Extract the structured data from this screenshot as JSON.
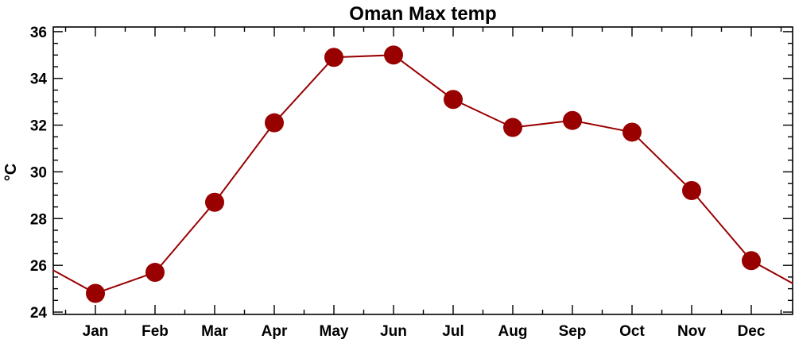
{
  "chart_data": {
    "type": "line",
    "title": "Oman Max temp",
    "xlabel": "",
    "ylabel": "°C",
    "categories": [
      "Jan",
      "Feb",
      "Mar",
      "Apr",
      "May",
      "Jun",
      "Jul",
      "Aug",
      "Sep",
      "Oct",
      "Nov",
      "Dec"
    ],
    "series": [
      {
        "values": [
          24.8,
          25.7,
          28.7,
          32.1,
          34.9,
          35.0,
          33.1,
          31.9,
          32.2,
          31.7,
          29.2,
          26.2
        ],
        "color": "#990000"
      }
    ],
    "ylim": [
      23.9,
      36.2
    ],
    "yticks": [
      24,
      26,
      28,
      30,
      32,
      34,
      36
    ],
    "grid": false,
    "legend": "none",
    "wrap_around": true
  }
}
